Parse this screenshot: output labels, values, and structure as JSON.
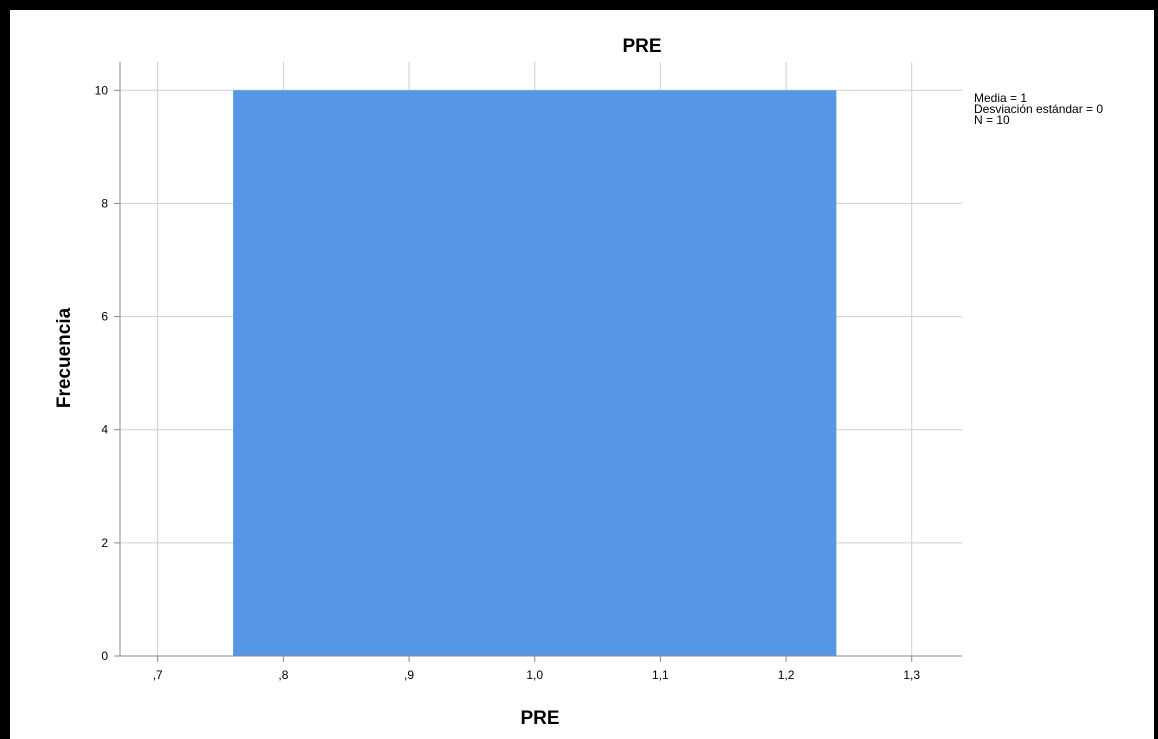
{
  "chart_data": {
    "type": "bar",
    "subtype": "histogram",
    "title": "PRE",
    "xlabel": "PRE",
    "ylabel": "Frecuencia",
    "x_ticks": [
      ",7",
      ",8",
      ",9",
      "1,0",
      "1,1",
      "1,2",
      "1,3"
    ],
    "x_tick_values": [
      0.7,
      0.8,
      0.9,
      1.0,
      1.1,
      1.2,
      1.3
    ],
    "y_ticks": [
      "0",
      "2",
      "4",
      "6",
      "8",
      "10"
    ],
    "y_tick_values": [
      0,
      2,
      4,
      6,
      8,
      10
    ],
    "xlim": [
      0.67,
      1.34
    ],
    "ylim": [
      0,
      10.5
    ],
    "bins": [
      {
        "x_start": 0.76,
        "x_end": 1.24,
        "value": 10
      }
    ],
    "bar_color": "#5596e5",
    "grid": true,
    "stats": {
      "media": "Media = 1",
      "desviacion": "Desviación estándar = 0",
      "n": "N = 10"
    }
  }
}
